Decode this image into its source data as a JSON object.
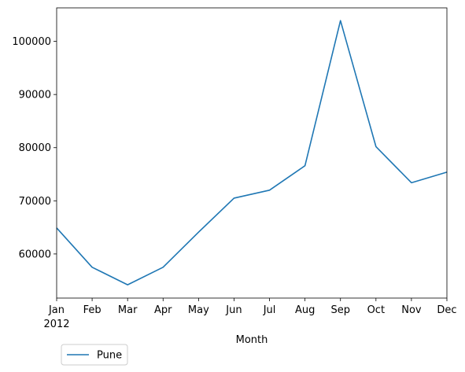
{
  "chart_data": {
    "type": "line",
    "title": "",
    "xlabel": "Month",
    "ylabel": "",
    "categories": [
      "Jan",
      "Feb",
      "Mar",
      "Apr",
      "May",
      "Jun",
      "Jul",
      "Aug",
      "Sep",
      "Oct",
      "Nov",
      "Dec"
    ],
    "year_label": "2012",
    "series": [
      {
        "name": "Pune",
        "color": "#1f77b4",
        "values": [
          64900,
          57500,
          54200,
          57500,
          64100,
          70500,
          72000,
          76600,
          103900,
          80200,
          73400,
          75400
        ]
      }
    ],
    "ylim": [
      51700,
      106300
    ],
    "yticks": [
      60000,
      70000,
      80000,
      90000,
      100000
    ],
    "grid": false,
    "legend_position": "below-left"
  }
}
